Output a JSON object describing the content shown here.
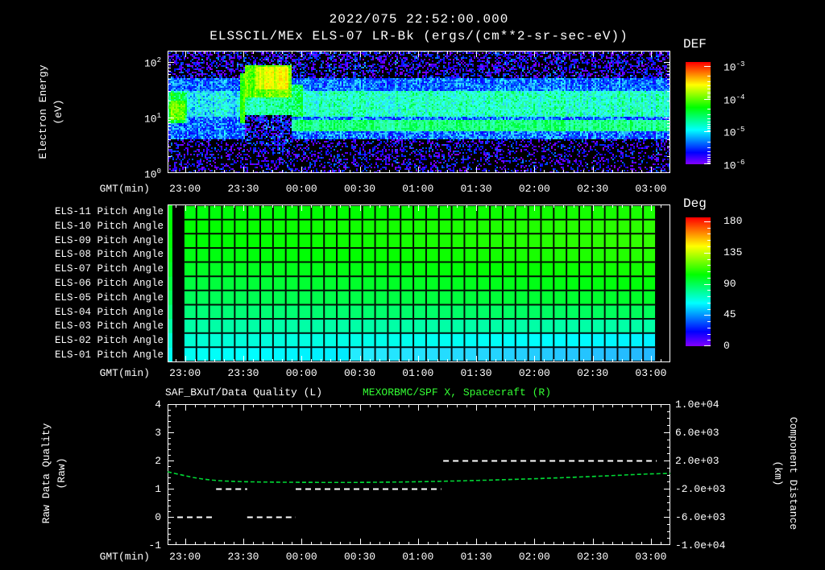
{
  "header": {
    "title": "2022/075 22:52:00.000",
    "subtitle": "ELSSCIL/MEx ELS-07 LR-Bk  (ergs/(cm**2-sr-sec-eV))"
  },
  "time_axis": {
    "label": "GMT(min)",
    "ticks": [
      "23:00",
      "23:30",
      "00:00",
      "00:30",
      "01:00",
      "01:30",
      "02:00",
      "02:30",
      "03:00"
    ],
    "start_offset_min": 9,
    "tick_interval_min": 30,
    "span_min": 259
  },
  "colors": {
    "background": "#000000",
    "text": "#ffffff",
    "green_text": "#33ff33",
    "green_line": "#00d835",
    "quality_line": "#ffffff"
  },
  "panels": {
    "spectrogram": {
      "ylabel_lines": [
        "Electron Energy",
        "(eV)"
      ],
      "yticks": [
        {
          "base": "10",
          "exp": "2"
        },
        {
          "base": "10",
          "exp": "1"
        },
        {
          "base": "10",
          "exp": "0"
        }
      ],
      "colorbar": {
        "title": "DEF",
        "ticks": [
          {
            "base": "10",
            "exp": "-3"
          },
          {
            "base": "10",
            "exp": "-4"
          },
          {
            "base": "10",
            "exp": "-5"
          },
          {
            "base": "10",
            "exp": "-6"
          }
        ]
      }
    },
    "pitch": {
      "row_labels": [
        "ELS-11 Pitch Angle",
        "ELS-10 Pitch Angle",
        "ELS-09 Pitch Angle",
        "ELS-08 Pitch Angle",
        "ELS-07 Pitch Angle",
        "ELS-06 Pitch Angle",
        "ELS-05 Pitch Angle",
        "ELS-04 Pitch Angle",
        "ELS-03 Pitch Angle",
        "ELS-02 Pitch Angle",
        "ELS-01 Pitch Angle"
      ],
      "colorbar": {
        "title": "Deg",
        "ticks": [
          "180",
          "135",
          "90",
          "45",
          "0"
        ],
        "range": [
          0,
          180
        ]
      }
    },
    "bottom": {
      "title_left": "SAF_BXuT/Data Quality (L)",
      "title_right": "MEXORBMC/SPF X, Spacecraft (R)",
      "ylabel_lines": [
        "Raw Data Quality",
        "(Raw)"
      ],
      "yticks_left": [
        "4",
        "3",
        "2",
        "1",
        "0",
        "-1"
      ],
      "ylabel_right_lines": [
        "Component Distance",
        "(km)"
      ],
      "yticks_right": [
        "1.0e+04",
        "6.0e+03",
        "2.0e+03",
        "-2.0e+03",
        "-6.0e+03",
        "-1.0e+04"
      ]
    }
  },
  "chart_data": [
    {
      "type": "heatmap",
      "name": "electron-energy-spectrogram",
      "title": "ELSSCIL/MEx ELS-07 LR-Bk",
      "value_unit": "log10 DEF ergs/(cm**2-sr-sec-eV)",
      "value_range": [
        -6,
        -3
      ],
      "x_start": "22:51",
      "x_end": "03:10",
      "x_span_min": 259,
      "y_unit": "eV",
      "y_log10_range": [
        0,
        2.2
      ],
      "regions": [
        {
          "t": [
            0,
            259
          ],
          "le": [
            0.0,
            0.6
          ],
          "v": -6.05,
          "noise": 0.5,
          "density": 0.42
        },
        {
          "t": [
            0,
            259
          ],
          "le": [
            0.6,
            1.02
          ],
          "v": -5.55,
          "noise": 0.35
        },
        {
          "t": [
            0,
            259
          ],
          "le": [
            1.02,
            1.48
          ],
          "v": -4.95,
          "noise": 0.3
        },
        {
          "t": [
            0,
            259
          ],
          "le": [
            1.48,
            1.72
          ],
          "v": -5.55,
          "noise": 0.3
        },
        {
          "t": [
            0,
            259
          ],
          "le": [
            1.72,
            2.2
          ],
          "v": -6.0,
          "noise": 0.5,
          "density": 0.55
        },
        {
          "t": [
            60,
            259
          ],
          "le": [
            0.76,
            0.95
          ],
          "v": -4.75,
          "noise": 0.15
        },
        {
          "t": [
            10,
            38
          ],
          "le": [
            1.02,
            1.48
          ],
          "v": -5.15,
          "noise": 0.35
        },
        {
          "t": [
            0,
            10
          ],
          "le": [
            0.9,
            1.45
          ],
          "v": -4.6,
          "noise": 0.3
        },
        {
          "t": [
            1,
            9
          ],
          "le": [
            0.95,
            1.3
          ],
          "v": -4.15,
          "noise": 0.2
        },
        {
          "t": [
            37,
            40
          ],
          "le": [
            0.9,
            1.8
          ],
          "v": -4.35,
          "noise": 0.2
        },
        {
          "t": [
            40,
            64
          ],
          "le": [
            1.35,
            1.95
          ],
          "v": -4.15,
          "noise": 0.2
        },
        {
          "t": [
            46,
            62
          ],
          "le": [
            1.5,
            1.9
          ],
          "v": -3.8,
          "noise": 0.12
        },
        {
          "t": [
            40,
            64
          ],
          "le": [
            1.05,
            1.35
          ],
          "v": -4.85,
          "noise": 0.25
        },
        {
          "t": [
            40,
            64
          ],
          "le": [
            0.5,
            1.05
          ],
          "v": -5.85,
          "noise": 0.45,
          "density": 0.6
        },
        {
          "t": [
            64,
            70
          ],
          "le": [
            1.0,
            1.6
          ],
          "v": -4.7,
          "noise": 0.3
        }
      ]
    },
    {
      "type": "heatmap",
      "name": "pitch-angle-grid",
      "unit": "deg",
      "range": [
        0,
        180
      ],
      "columns": 37,
      "rows": [
        {
          "label": "ELS-11",
          "start_deg": 98,
          "end_deg": 104
        },
        {
          "label": "ELS-10",
          "start_deg": 100,
          "end_deg": 107
        },
        {
          "label": "ELS-09",
          "start_deg": 99,
          "end_deg": 108
        },
        {
          "label": "ELS-08",
          "start_deg": 97,
          "end_deg": 106
        },
        {
          "label": "ELS-07",
          "start_deg": 94,
          "end_deg": 103
        },
        {
          "label": "ELS-06",
          "start_deg": 90,
          "end_deg": 99
        },
        {
          "label": "ELS-05",
          "start_deg": 86,
          "end_deg": 94
        },
        {
          "label": "ELS-04",
          "start_deg": 81,
          "end_deg": 86
        },
        {
          "label": "ELS-03",
          "start_deg": 74,
          "end_deg": 74
        },
        {
          "label": "ELS-02",
          "start_deg": 67,
          "end_deg": 58
        },
        {
          "label": "ELS-01",
          "start_deg": 62,
          "end_deg": 47
        }
      ]
    },
    {
      "type": "line",
      "name": "quality-and-spacecraft-x",
      "left_axis": {
        "label": "Raw Data Quality (Raw)",
        "range": [
          -1,
          4
        ]
      },
      "right_axis": {
        "label": "Component Distance (km)",
        "range": [
          -10000,
          10000
        ]
      },
      "series": [
        {
          "name": "MEXORBMC/SPF X, Spacecraft (R)",
          "axis": "right",
          "style": "dashed-line",
          "points_min_km": [
            [
              0,
              400
            ],
            [
              4,
              150
            ],
            [
              8,
              -100
            ],
            [
              13,
              -400
            ],
            [
              18,
              -620
            ],
            [
              23,
              -780
            ],
            [
              28,
              -890
            ],
            [
              34,
              -960
            ],
            [
              40,
              -1010
            ],
            [
              48,
              -1050
            ],
            [
              56,
              -1075
            ],
            [
              64,
              -1090
            ],
            [
              72,
              -1100
            ],
            [
              80,
              -1110
            ],
            [
              88,
              -1115
            ],
            [
              96,
              -1110
            ],
            [
              104,
              -1095
            ],
            [
              112,
              -1075
            ],
            [
              120,
              -1050
            ],
            [
              128,
              -1015
            ],
            [
              136,
              -975
            ],
            [
              144,
              -930
            ],
            [
              152,
              -880
            ],
            [
              160,
              -825
            ],
            [
              168,
              -765
            ],
            [
              176,
              -700
            ],
            [
              184,
              -630
            ],
            [
              192,
              -555
            ],
            [
              200,
              -475
            ],
            [
              208,
              -390
            ],
            [
              216,
              -300
            ],
            [
              224,
              -205
            ],
            [
              232,
              -105
            ],
            [
              240,
              0
            ],
            [
              248,
              90
            ],
            [
              254,
              140
            ],
            [
              259,
              170
            ]
          ]
        },
        {
          "name": "SAF_BXuT/Data Quality (L)",
          "axis": "left",
          "style": "dashed-segments",
          "segments": [
            {
              "level": 0,
              "t0": 5,
              "t1": 24
            },
            {
              "level": 1,
              "t0": 25,
              "t1": 41
            },
            {
              "level": 0,
              "t0": 41,
              "t1": 66
            },
            {
              "level": 1,
              "t0": 66,
              "t1": 141
            },
            {
              "level": 2,
              "t0": 142,
              "t1": 252
            }
          ]
        }
      ]
    }
  ]
}
